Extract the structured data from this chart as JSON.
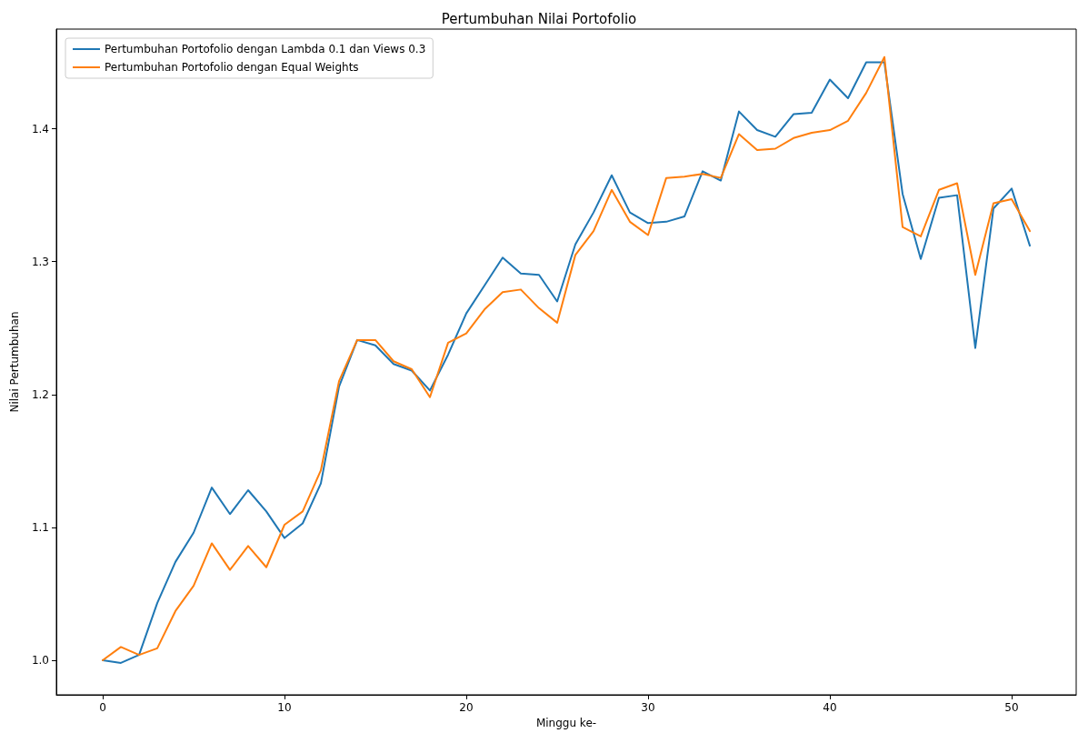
{
  "chart_data": {
    "type": "line",
    "title": "Pertumbuhan Nilai Portofolio",
    "xlabel": "Minggu ke-",
    "ylabel": "Nilai Pertumbuhan",
    "x": [
      0,
      1,
      2,
      3,
      4,
      5,
      6,
      7,
      8,
      9,
      10,
      11,
      12,
      13,
      14,
      15,
      16,
      17,
      18,
      19,
      20,
      21,
      22,
      23,
      24,
      25,
      26,
      27,
      28,
      29,
      30,
      31,
      32,
      33,
      34,
      35,
      36,
      37,
      38,
      39,
      40,
      41,
      42,
      43,
      44,
      45,
      46,
      47,
      48,
      49,
      50,
      51
    ],
    "series": [
      {
        "name": "Pertumbuhan Portofolio dengan Lambda 0.1 dan Views 0.3",
        "color": "#1f77b4",
        "values": [
          1.0,
          0.998,
          1.004,
          1.043,
          1.074,
          1.096,
          1.13,
          1.11,
          1.128,
          1.112,
          1.092,
          1.103,
          1.133,
          1.206,
          1.241,
          1.237,
          1.223,
          1.218,
          1.203,
          1.23,
          1.261,
          1.282,
          1.303,
          1.291,
          1.29,
          1.27,
          1.313,
          1.337,
          1.365,
          1.337,
          1.329,
          1.33,
          1.334,
          1.368,
          1.361,
          1.413,
          1.399,
          1.394,
          1.411,
          1.412,
          1.437,
          1.423,
          1.45,
          1.45,
          1.351,
          1.302,
          1.348,
          1.35,
          1.235,
          1.34,
          1.355,
          1.312
        ]
      },
      {
        "name": "Pertumbuhan Portofolio dengan Equal Weights",
        "color": "#ff7f0e",
        "values": [
          1.0,
          1.01,
          1.004,
          1.009,
          1.037,
          1.056,
          1.088,
          1.068,
          1.086,
          1.07,
          1.102,
          1.112,
          1.143,
          1.21,
          1.241,
          1.241,
          1.225,
          1.219,
          1.198,
          1.239,
          1.246,
          1.264,
          1.277,
          1.279,
          1.265,
          1.254,
          1.305,
          1.323,
          1.354,
          1.33,
          1.32,
          1.363,
          1.364,
          1.366,
          1.363,
          1.396,
          1.384,
          1.385,
          1.393,
          1.397,
          1.399,
          1.406,
          1.427,
          1.454,
          1.326,
          1.319,
          1.354,
          1.359,
          1.29,
          1.344,
          1.347,
          1.323
        ]
      }
    ],
    "xlim": [
      -2.55,
      53.55
    ],
    "ylim": [
      0.974,
      1.475
    ],
    "xticks": [
      0,
      10,
      20,
      30,
      40,
      50
    ],
    "yticks": [
      {
        "value": 1,
        "label": "1.0"
      },
      {
        "value": 1.1,
        "label": "1.1"
      },
      {
        "value": 1.2,
        "label": "1.2"
      },
      {
        "value": 1.3,
        "label": "1.3"
      },
      {
        "value": 1.4,
        "label": "1.4"
      }
    ],
    "legend": "top left",
    "grid": false,
    "marker": "none",
    "line_style": "solid"
  }
}
